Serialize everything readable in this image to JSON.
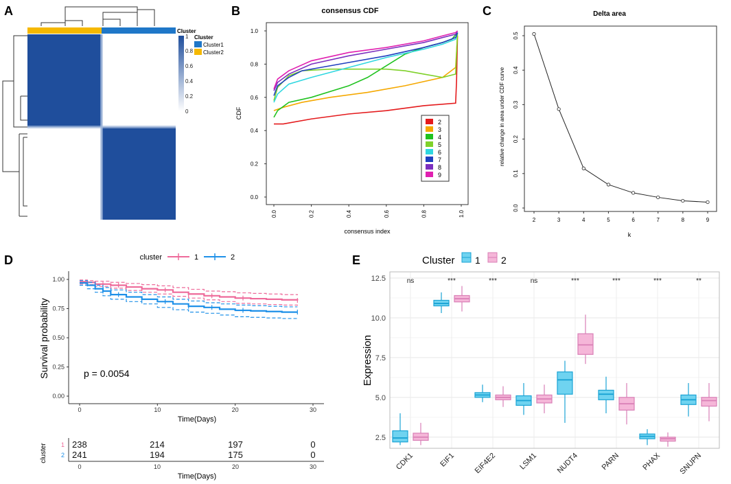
{
  "panel_labels": {
    "a": "A",
    "b": "B",
    "c": "C",
    "d": "D",
    "e": "E"
  },
  "heatmap": {
    "legend_title": "Cluster",
    "colorbar_title": "Cluster",
    "clusters": [
      {
        "name": "Cluster1",
        "color": "#1f77c8"
      },
      {
        "name": "Cluster2",
        "color": "#f5b800"
      }
    ],
    "colorbar_ticks": [
      "1",
      "0.8",
      "0.6",
      "0.4",
      "0.2",
      "0"
    ],
    "fill_color": "#1f4e9c"
  },
  "colors": {
    "k2": "#e41a1c",
    "k3": "#f5a800",
    "k4": "#1fc21f",
    "k5": "#7fd12a",
    "k6": "#2fd7e0",
    "k7": "#1f3fbf",
    "k8": "#7b2fbf",
    "k9": "#e020b0",
    "cluster1_km": "#ee6a9a",
    "cluster2_km": "#1e90e8",
    "box1_fill": "#6fd3f0",
    "box1_line": "#1aa3d4",
    "box2_fill": "#f5b6d8",
    "box2_line": "#d97fb6"
  },
  "chart_data": [
    {
      "id": "B",
      "type": "line",
      "title": "consensus CDF",
      "xlabel": "consensus index",
      "ylabel": "CDF",
      "xlim": [
        0,
        1
      ],
      "ylim": [
        0,
        1
      ],
      "x_ticks": [
        "0.0",
        "0.2",
        "0.4",
        "0.6",
        "0.8",
        "1.0"
      ],
      "y_ticks": [
        "0.0",
        "0.2",
        "0.4",
        "0.6",
        "0.8",
        "1.0"
      ],
      "series": [
        {
          "name": "2",
          "x": [
            0,
            0.05,
            0.2,
            0.4,
            0.6,
            0.8,
            0.97,
            0.975,
            0.98
          ],
          "y": [
            0.44,
            0.44,
            0.47,
            0.5,
            0.52,
            0.55,
            0.565,
            0.7,
            0.97
          ]
        },
        {
          "name": "3",
          "x": [
            0,
            0.05,
            0.15,
            0.3,
            0.5,
            0.7,
            0.9,
            0.97,
            0.98
          ],
          "y": [
            0.52,
            0.54,
            0.57,
            0.6,
            0.63,
            0.67,
            0.72,
            0.78,
            0.97
          ]
        },
        {
          "name": "4",
          "x": [
            0,
            0.02,
            0.08,
            0.2,
            0.4,
            0.5,
            0.6,
            0.7,
            0.8,
            0.9,
            0.95,
            0.98
          ],
          "y": [
            0.48,
            0.52,
            0.57,
            0.6,
            0.67,
            0.72,
            0.79,
            0.86,
            0.9,
            0.93,
            0.95,
            0.99
          ]
        },
        {
          "name": "5",
          "x": [
            0,
            0.02,
            0.08,
            0.15,
            0.3,
            0.5,
            0.6,
            0.7,
            0.8,
            0.9,
            0.97,
            0.98
          ],
          "y": [
            0.58,
            0.66,
            0.73,
            0.76,
            0.77,
            0.77,
            0.77,
            0.76,
            0.74,
            0.72,
            0.74,
            0.99
          ]
        },
        {
          "name": "6",
          "x": [
            0,
            0.02,
            0.08,
            0.2,
            0.4,
            0.6,
            0.8,
            0.9,
            0.97,
            0.98
          ],
          "y": [
            0.57,
            0.62,
            0.68,
            0.72,
            0.78,
            0.84,
            0.89,
            0.92,
            0.95,
            0.99
          ]
        },
        {
          "name": "7",
          "x": [
            0,
            0.02,
            0.08,
            0.15,
            0.25,
            0.4,
            0.6,
            0.8,
            0.9,
            0.97,
            0.98
          ],
          "y": [
            0.61,
            0.67,
            0.72,
            0.76,
            0.78,
            0.81,
            0.85,
            0.9,
            0.93,
            0.96,
            0.99
          ]
        },
        {
          "name": "8",
          "x": [
            0,
            0.02,
            0.08,
            0.2,
            0.4,
            0.6,
            0.8,
            0.9,
            0.97,
            0.98
          ],
          "y": [
            0.64,
            0.69,
            0.74,
            0.8,
            0.85,
            0.89,
            0.93,
            0.96,
            0.98,
            1.0
          ]
        },
        {
          "name": "9",
          "x": [
            0,
            0.02,
            0.08,
            0.2,
            0.4,
            0.6,
            0.8,
            0.9,
            0.97,
            0.98
          ],
          "y": [
            0.65,
            0.71,
            0.76,
            0.82,
            0.87,
            0.9,
            0.94,
            0.97,
            0.99,
            1.0
          ]
        }
      ],
      "legend": [
        "2",
        "3",
        "4",
        "5",
        "6",
        "7",
        "8",
        "9"
      ],
      "legend_position": "bottom-right"
    },
    {
      "id": "C",
      "type": "line",
      "title": "Delta area",
      "xlabel": "k",
      "ylabel": "relative change in area under CDF curve",
      "xlim": [
        2,
        9
      ],
      "ylim": [
        0,
        0.5
      ],
      "x_ticks": [
        "2",
        "3",
        "4",
        "5",
        "6",
        "7",
        "8",
        "9"
      ],
      "y_ticks": [
        "0.0",
        "0.1",
        "0.2",
        "0.3",
        "0.4",
        "0.5"
      ],
      "x": [
        2,
        3,
        4,
        5,
        6,
        7,
        8,
        9
      ],
      "y": [
        0.505,
        0.287,
        0.115,
        0.068,
        0.044,
        0.031,
        0.021,
        0.017
      ]
    },
    {
      "id": "D",
      "type": "line",
      "legend_title": "cluster",
      "legend": [
        "1",
        "2"
      ],
      "xlabel": "Time(Days)",
      "ylabel": "Survival probability",
      "xlim": [
        0,
        30
      ],
      "ylim": [
        0,
        1
      ],
      "x_ticks": [
        "0",
        "10",
        "20",
        "30"
      ],
      "y_ticks": [
        "0.00",
        "0.25",
        "0.50",
        "0.75",
        "1.00"
      ],
      "annotation": "p = 0.0054",
      "series": [
        {
          "name": "1",
          "t": [
            0,
            1,
            2,
            4,
            6,
            8,
            10,
            12,
            14,
            16,
            18,
            20,
            22,
            24,
            26,
            28
          ],
          "s": [
            0.98,
            0.975,
            0.96,
            0.95,
            0.935,
            0.92,
            0.91,
            0.89,
            0.875,
            0.86,
            0.85,
            0.84,
            0.835,
            0.83,
            0.825,
            0.82
          ],
          "upper": [
            0.995,
            0.99,
            0.985,
            0.975,
            0.965,
            0.955,
            0.945,
            0.93,
            0.915,
            0.9,
            0.895,
            0.885,
            0.88,
            0.875,
            0.87,
            0.865
          ],
          "lower": [
            0.96,
            0.955,
            0.94,
            0.925,
            0.905,
            0.89,
            0.875,
            0.855,
            0.84,
            0.825,
            0.81,
            0.795,
            0.79,
            0.785,
            0.78,
            0.775
          ]
        },
        {
          "name": "2",
          "t": [
            0,
            1,
            2,
            3,
            4,
            6,
            8,
            10,
            12,
            14,
            16,
            18,
            20,
            22,
            24,
            26,
            28
          ],
          "s": [
            0.97,
            0.95,
            0.92,
            0.9,
            0.87,
            0.85,
            0.83,
            0.81,
            0.79,
            0.77,
            0.76,
            0.745,
            0.735,
            0.73,
            0.725,
            0.72,
            0.72
          ],
          "upper": [
            0.99,
            0.975,
            0.95,
            0.93,
            0.91,
            0.89,
            0.87,
            0.85,
            0.83,
            0.815,
            0.8,
            0.79,
            0.78,
            0.775,
            0.77,
            0.765,
            0.765
          ],
          "lower": [
            0.95,
            0.92,
            0.89,
            0.86,
            0.83,
            0.81,
            0.79,
            0.76,
            0.74,
            0.72,
            0.71,
            0.695,
            0.68,
            0.675,
            0.67,
            0.665,
            0.665
          ]
        }
      ],
      "risk_table": {
        "title": "cluster",
        "xlabel": "Time(Days)",
        "x_ticks": [
          "0",
          "10",
          "20",
          "30"
        ],
        "rows": [
          {
            "label": "1",
            "values": [
              "238",
              "214",
              "197",
              "0"
            ]
          },
          {
            "label": "2",
            "values": [
              "241",
              "194",
              "175",
              "0"
            ]
          }
        ]
      }
    },
    {
      "id": "E",
      "type": "box",
      "legend_title": "Cluster",
      "legend": [
        "1",
        "2"
      ],
      "ylabel": "Expression",
      "ylim": [
        1.8,
        12.5
      ],
      "y_ticks": [
        2.5,
        5.0,
        7.5,
        10.0,
        12.5
      ],
      "y_tick_labels": [
        "2.5",
        "5.0",
        "7.5",
        "10.0",
        "12.5"
      ],
      "categories": [
        "CDK1",
        "EIF1",
        "EIF4E2",
        "LSM1",
        "NUDT4",
        "PARN",
        "PHAX",
        "SNUPN"
      ],
      "significance": [
        "ns",
        "***",
        "***",
        "ns",
        "***",
        "***",
        "***",
        "**"
      ],
      "boxes": [
        {
          "g1": [
            2.0,
            2.2,
            2.45,
            2.9,
            4.0
          ],
          "g2": [
            2.0,
            2.3,
            2.5,
            2.75,
            3.4
          ]
        },
        {
          "g1": [
            10.3,
            10.75,
            10.9,
            11.1,
            11.6
          ],
          "g2": [
            10.4,
            11.0,
            11.2,
            11.4,
            12.0
          ]
        },
        {
          "g1": [
            4.7,
            5.0,
            5.15,
            5.3,
            5.8
          ],
          "g2": [
            4.4,
            4.85,
            5.0,
            5.15,
            5.7
          ]
        },
        {
          "g1": [
            3.9,
            4.5,
            4.8,
            5.1,
            5.9
          ],
          "g2": [
            4.0,
            4.65,
            4.9,
            5.15,
            5.8
          ]
        },
        {
          "g1": [
            3.4,
            5.2,
            6.1,
            6.6,
            7.3
          ],
          "g2": [
            7.1,
            7.7,
            8.3,
            9.0,
            10.2
          ]
        },
        {
          "g1": [
            4.0,
            4.85,
            5.2,
            5.45,
            6.3
          ],
          "g2": [
            3.3,
            4.2,
            4.6,
            5.0,
            5.9
          ]
        },
        {
          "g1": [
            2.0,
            2.4,
            2.55,
            2.7,
            3.0
          ],
          "g2": [
            1.9,
            2.25,
            2.4,
            2.5,
            2.8
          ]
        },
        {
          "g1": [
            3.8,
            4.55,
            4.85,
            5.15,
            5.9
          ],
          "g2": [
            3.5,
            4.45,
            4.8,
            5.0,
            5.9
          ]
        }
      ]
    }
  ]
}
